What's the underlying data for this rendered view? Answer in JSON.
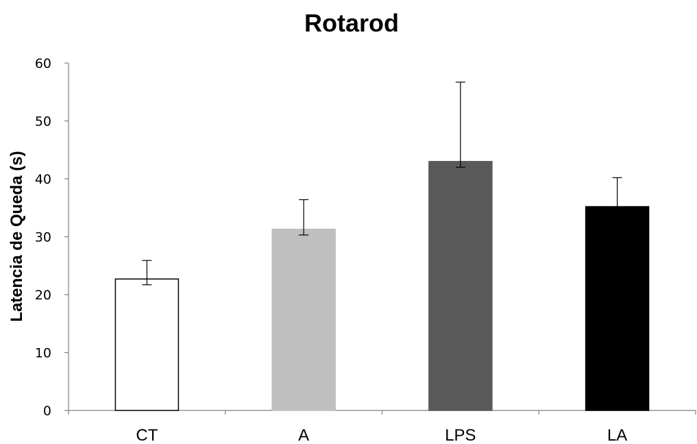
{
  "chart_data": {
    "type": "bar",
    "title": "Rotarod",
    "ylabel": "Latencia de Queda (s)",
    "xlabel": "",
    "ylim": [
      0,
      60
    ],
    "yticks": [
      0,
      10,
      20,
      30,
      40,
      50,
      60
    ],
    "categories": [
      "CT",
      "A",
      "LPS",
      "LA"
    ],
    "values": [
      22.7,
      31.3,
      43.0,
      35.2
    ],
    "error_upper": [
      3.2,
      5.1,
      13.7,
      5.0
    ],
    "error_lower": [
      1.0,
      1.0,
      1.0,
      0
    ],
    "colors": [
      "#ffffff",
      "#bfbfbf",
      "#595959",
      "#000000"
    ],
    "grid": false,
    "legend": "none"
  }
}
